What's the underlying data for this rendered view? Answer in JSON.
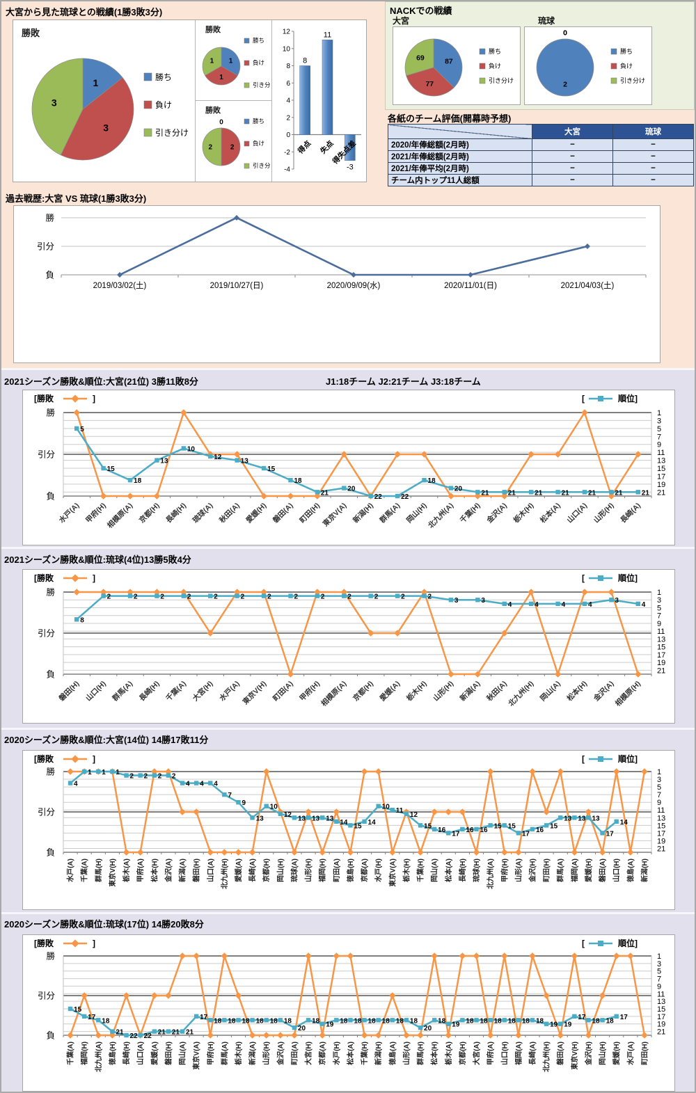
{
  "colors": {
    "pie": [
      "#4F81BD",
      "#C0504D",
      "#9BBB59"
    ],
    "winloss_line": "#F79646",
    "rank_line": "#4BACC6",
    "past_line": "#4A6D9C",
    "bar_blue": "#4F81BD",
    "table_header_bg": "#2E5395",
    "table_row_bg": "#D9E2F3",
    "bg_top": "#FBE5D6",
    "bg_nack": "#EBF1DE",
    "bg_seasons": "#E3E0ED"
  },
  "sections": {
    "head_to_head": {
      "title": "大宮から見た琉球との戦績(1勝3敗3分)"
    },
    "nack": {
      "title": "NACKでの戦績"
    },
    "evaluation": {
      "title": "各紙のチーム評価(開幕時予想)",
      "columns": [
        "大宮",
        "琉球"
      ],
      "rows": [
        {
          "label": "2020/年俸総額(2月時)",
          "values": [
            "−",
            "−"
          ]
        },
        {
          "label": "2021/年俸総額(2月時)",
          "values": [
            "−",
            "−"
          ]
        },
        {
          "label": "2021/年俸平均(2月時)",
          "values": [
            "−",
            "−"
          ]
        },
        {
          "label": "チーム内トップ11人総額",
          "values": [
            "−",
            "−"
          ]
        }
      ]
    },
    "season_note": "J1:18チーム  J2:21チーム  J3:18チーム"
  },
  "chart_data": [
    {
      "id": "h2h-pie-main",
      "type": "pie",
      "title": "勝敗",
      "labels": [
        "勝ち",
        "負け",
        "引き分け"
      ],
      "values": [
        1,
        3,
        3
      ]
    },
    {
      "id": "h2h-pie-top",
      "type": "pie",
      "title": "勝敗",
      "labels": [
        "勝ち",
        "負け",
        "引き分け"
      ],
      "values": [
        1,
        1,
        1
      ]
    },
    {
      "id": "h2h-pie-bottom",
      "type": "pie",
      "title": "勝敗",
      "labels": [
        "勝ち",
        "負け",
        "引き分け"
      ],
      "values": [
        0,
        2,
        2
      ]
    },
    {
      "id": "h2h-bar",
      "type": "bar",
      "categories": [
        "得点",
        "失点",
        "得失点差"
      ],
      "values": [
        8,
        11,
        -3
      ],
      "ylim": [
        -4,
        12
      ],
      "ytick_step": 2
    },
    {
      "id": "nack-pie-omiya",
      "type": "pie",
      "title": "大宮",
      "labels": [
        "勝ち",
        "負け",
        "引き分け"
      ],
      "values": [
        87,
        77,
        69
      ]
    },
    {
      "id": "nack-pie-ryukyu",
      "type": "pie",
      "title": "琉球",
      "labels": [
        "勝ち",
        "負け",
        "引き分け"
      ],
      "values": [
        2,
        0,
        0
      ]
    },
    {
      "id": "past-line",
      "type": "line",
      "header": "過去戦歴:大宮 VS 琉球(1勝3敗3分)",
      "y_categories": [
        "勝",
        "引分",
        "負"
      ],
      "categories": [
        "2019/03/02(土)",
        "2019/10/27(日)",
        "2020/09/09(水)",
        "2020/11/01(日)",
        "2021/04/03(土)"
      ],
      "values": [
        "負",
        "勝",
        "負",
        "負",
        "引分"
      ]
    },
    {
      "id": "season-2021-omiya",
      "type": "line",
      "header": "2021シーズン勝敗&順位:大宮(21位) 3勝11敗8分",
      "legend_winloss": "勝敗",
      "legend_rank": "順位",
      "y_left": [
        "勝",
        "引分",
        "負"
      ],
      "y_right_ticks": [
        1,
        3,
        5,
        7,
        9,
        11,
        13,
        15,
        17,
        19,
        21
      ],
      "categories": [
        "水戸(A)",
        "甲府(H)",
        "相模原(A)",
        "京都(H)",
        "長崎(H)",
        "琉球(A)",
        "秋田(A)",
        "愛媛(H)",
        "磐田(A)",
        "町田(H)",
        "東京V(A)",
        "新潟(H)",
        "群馬(A)",
        "岡山(H)",
        "北九州(A)",
        "千葉(H)",
        "金沢(A)",
        "栃木(H)",
        "松本(A)",
        "山口(A)",
        "山形(H)",
        "長崎(A)"
      ],
      "series": [
        {
          "name": "勝敗",
          "values": [
            "勝",
            "負",
            "負",
            "負",
            "勝",
            "分",
            "分",
            "負",
            "負",
            "負",
            "分",
            "負",
            "分",
            "分",
            "負",
            "負",
            "負",
            "分",
            "分",
            "勝",
            "負",
            "分"
          ]
        },
        {
          "name": "順位",
          "values": [
            5,
            15,
            18,
            13,
            10,
            12,
            13,
            15,
            18,
            21,
            20,
            22,
            22,
            18,
            20,
            21,
            21,
            21,
            21,
            21,
            21,
            21
          ]
        }
      ]
    },
    {
      "id": "season-2021-ryukyu",
      "type": "line",
      "header": "2021シーズン勝敗&順位:琉球(4位)13勝5敗4分",
      "legend_winloss": "勝敗",
      "legend_rank": "順位",
      "y_left": [
        "勝",
        "引分",
        "負"
      ],
      "y_right_ticks": [
        1,
        3,
        5,
        7,
        9,
        11,
        13,
        15,
        17,
        19,
        21
      ],
      "categories": [
        "磐田(H)",
        "山口(H)",
        "群馬(A)",
        "長崎(H)",
        "千葉(A)",
        "大宮(H)",
        "水戸(A)",
        "東京V(H)",
        "町田(A)",
        "甲府(H)",
        "相模原(A)",
        "京都(H)",
        "愛媛(A)",
        "栃木(H)",
        "山形(H)",
        "新潟(A)",
        "秋田(A)",
        "北九州(H)",
        "岡山(A)",
        "松本(H)",
        "金沢(A)",
        "相模原(H)"
      ],
      "series": [
        {
          "name": "勝敗",
          "values": [
            "勝",
            "勝",
            "勝",
            "勝",
            "勝",
            "分",
            "勝",
            "勝",
            "負",
            "勝",
            "勝",
            "分",
            "分",
            "勝",
            "負",
            "負",
            "分",
            "勝",
            "負",
            "勝",
            "勝",
            "負"
          ]
        },
        {
          "name": "順位",
          "values": [
            8,
            2,
            2,
            2,
            2,
            2,
            2,
            2,
            2,
            2,
            2,
            2,
            2,
            2,
            3,
            3,
            4,
            4,
            4,
            4,
            3,
            4
          ]
        }
      ]
    },
    {
      "id": "season-2020-omiya",
      "type": "line",
      "header": "2020シーズン勝敗&順位:大宮(14位) 14勝17敗11分",
      "legend_winloss": "勝敗",
      "legend_rank": "順位",
      "y_left": [
        "勝",
        "引分",
        "負"
      ],
      "y_right_ticks": [
        1,
        3,
        5,
        7,
        9,
        11,
        13,
        15,
        17,
        19,
        21
      ],
      "categories": [
        "水戸(A)",
        "千葉(A)",
        "群馬(H)",
        "東京V(H)",
        "栃木(A)",
        "甲府(A)",
        "松本(H)",
        "金沢(A)",
        "新潟(A)",
        "磐田(H)",
        "山口(A)",
        "北九州(H)",
        "愛媛(A)",
        "長崎(A)",
        "京都(H)",
        "岡山(H)",
        "琉球(A)",
        "山形(H)",
        "福岡(H)",
        "町田(A)",
        "徳島(H)",
        "京都(A)",
        "水戸(H)",
        "東京V(A)",
        "栃木(H)",
        "千葉(H)",
        "岡山(A)",
        "松本(A)",
        "長崎(H)",
        "琉球(H)",
        "北九州(A)",
        "甲府(H)",
        "山形(A)",
        "金沢(H)",
        "町田(H)",
        "群馬(A)",
        "福岡(A)",
        "愛媛(H)",
        "磐田(A)",
        "山口(H)",
        "徳島(A)",
        "新潟(H)"
      ],
      "series": [
        {
          "name": "勝敗",
          "values": [
            "勝",
            "勝",
            "勝",
            "勝",
            "負",
            "負",
            "勝",
            "勝",
            "分",
            "分",
            "負",
            "負",
            "負",
            "負",
            "勝",
            "分",
            "負",
            "分",
            "負",
            "分",
            "負",
            "勝",
            "勝",
            "負",
            "分",
            "負",
            "分",
            "分",
            "分",
            "負",
            "勝",
            "負",
            "負",
            "勝",
            "分",
            "勝",
            "負",
            "分",
            "負",
            "勝",
            "負",
            "勝"
          ]
        },
        {
          "name": "順位",
          "values": [
            4,
            1,
            1,
            1,
            2,
            2,
            2,
            2,
            4,
            4,
            4,
            7,
            9,
            13,
            10,
            12,
            13,
            13,
            13,
            14,
            15,
            14,
            10,
            11,
            12,
            15,
            16,
            17,
            16,
            16,
            15,
            15,
            17,
            16,
            15,
            13,
            13,
            13,
            17,
            14,
            null,
            null
          ]
        }
      ]
    },
    {
      "id": "season-2020-ryukyu",
      "type": "line",
      "header": "2020シーズン勝敗&順位:琉球(17位) 14勝20敗8分",
      "legend_winloss": "勝敗",
      "legend_rank": "順位",
      "y_left": [
        "勝",
        "引分",
        "負"
      ],
      "y_right_ticks": [
        1,
        3,
        5,
        7,
        9,
        11,
        13,
        15,
        17,
        19,
        21
      ],
      "categories": [
        "千葉(A)",
        "福岡(H)",
        "北九州(A)",
        "徳島(H)",
        "長崎(H)",
        "山口(A)",
        "愛媛(A)",
        "磐田(H)",
        "岡山(A)",
        "東京V(A)",
        "甲府(H)",
        "群馬(A)",
        "栃木(H)",
        "新潟(A)",
        "山形(H)",
        "金沢(A)",
        "町田(A)",
        "大宮(H)",
        "京都(A)",
        "水戸(H)",
        "松本(A)",
        "千葉(H)",
        "新潟(H)",
        "徳島(A)",
        "山形(A)",
        "群馬(H)",
        "松本(H)",
        "栃木(A)",
        "京都(H)",
        "大宮(A)",
        "甲府(A)",
        "山口(H)",
        "福岡(A)",
        "長崎(A)",
        "北九州(H)",
        "磐田(A)",
        "東京V(H)",
        "金沢(H)",
        "岡山(H)",
        "愛媛(H)",
        "水戸(A)",
        "町田(H)"
      ],
      "series": [
        {
          "name": "勝敗",
          "values": [
            "負",
            "分",
            "負",
            "負",
            "分",
            "負",
            "分",
            "分",
            "勝",
            "勝",
            "負",
            "勝",
            "分",
            "負",
            "負",
            "負",
            "負",
            "勝",
            "負",
            "勝",
            "勝",
            "負",
            "負",
            "分",
            "負",
            "負",
            "勝",
            "負",
            "勝",
            "勝",
            "負",
            "勝",
            "負",
            "勝",
            "分",
            "負",
            "勝",
            "負",
            "分",
            "勝",
            "勝",
            "負"
          ]
        },
        {
          "name": "順位",
          "values": [
            15,
            17,
            18,
            21,
            22,
            22,
            21,
            21,
            21,
            17,
            18,
            18,
            18,
            18,
            18,
            18,
            20,
            18,
            19,
            18,
            18,
            18,
            18,
            18,
            18,
            20,
            18,
            19,
            18,
            18,
            18,
            18,
            18,
            18,
            19,
            19,
            17,
            18,
            18,
            17,
            null,
            null
          ]
        }
      ]
    }
  ]
}
